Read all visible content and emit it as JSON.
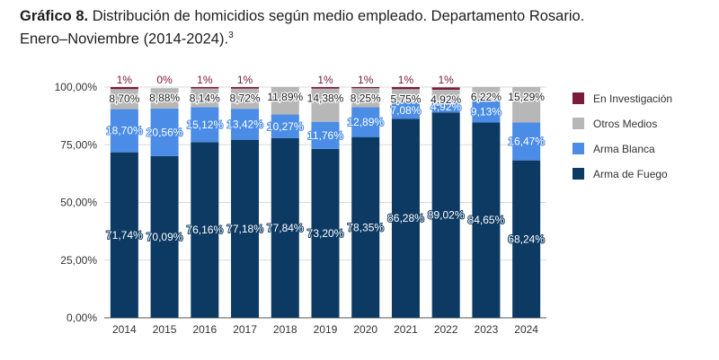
{
  "title": {
    "label": "Gráfico 8.",
    "text": "Distribución de homicidios según medio empleado. Departamento Rosario.",
    "line2": "Enero–Noviembre (2014-2024).",
    "note_mark": "3"
  },
  "chart_data": {
    "type": "bar",
    "stacked": true,
    "categories": [
      "2014",
      "2015",
      "2016",
      "2017",
      "2018",
      "2019",
      "2020",
      "2021",
      "2022",
      "2023",
      "2024"
    ],
    "ylim": [
      0,
      100
    ],
    "yticks": [
      "0,00%",
      "25,00%",
      "50,00%",
      "75,00%",
      "100,00%"
    ],
    "grid": true,
    "legend_position": "right",
    "series": [
      {
        "name": "Arma de Fuego",
        "color": "#0d3a63",
        "values": [
          71.74,
          70.09,
          76.16,
          77.18,
          77.84,
          73.2,
          78.35,
          86.28,
          89.02,
          84.65,
          68.24
        ],
        "labels": [
          "71,74%",
          "70,09%",
          "76,16%",
          "77,18%",
          "77,84%",
          "73,20%",
          "78,35%",
          "86,28%",
          "89,02%",
          "84,65%",
          "68,24%"
        ]
      },
      {
        "name": "Arma Blanca",
        "color": "#4a8ce6",
        "values": [
          18.7,
          20.56,
          15.12,
          13.42,
          10.27,
          11.76,
          12.89,
          7.08,
          4.92,
          9.13,
          16.47
        ],
        "labels": [
          "18,70%",
          "20,56%",
          "15,12%",
          "13,42%",
          "10,27%",
          "11,76%",
          "12,89%",
          "7,08%",
          "4,92%",
          "9,13%",
          "16,47%"
        ]
      },
      {
        "name": "Otros Medios",
        "color": "#b7b7b7",
        "values": [
          8.7,
          8.88,
          8.14,
          8.72,
          11.89,
          14.38,
          8.25,
          5.75,
          4.92,
          6.22,
          15.29
        ],
        "labels": [
          "8,70%",
          "8,88%",
          "8,14%",
          "8,72%",
          "11,89%",
          "14,38%",
          "8,25%",
          "5,75%",
          "4,92%",
          "6,22%",
          "15,29%"
        ]
      },
      {
        "name": "En Investigación",
        "color": "#7a1a3c",
        "values": [
          1,
          0,
          1,
          1,
          0,
          1,
          1,
          1,
          1,
          0,
          0
        ],
        "labels": [
          "1%",
          "0%",
          "1%",
          "1%",
          "",
          "1%",
          "1%",
          "1%",
          "1%",
          "",
          ""
        ]
      }
    ]
  }
}
